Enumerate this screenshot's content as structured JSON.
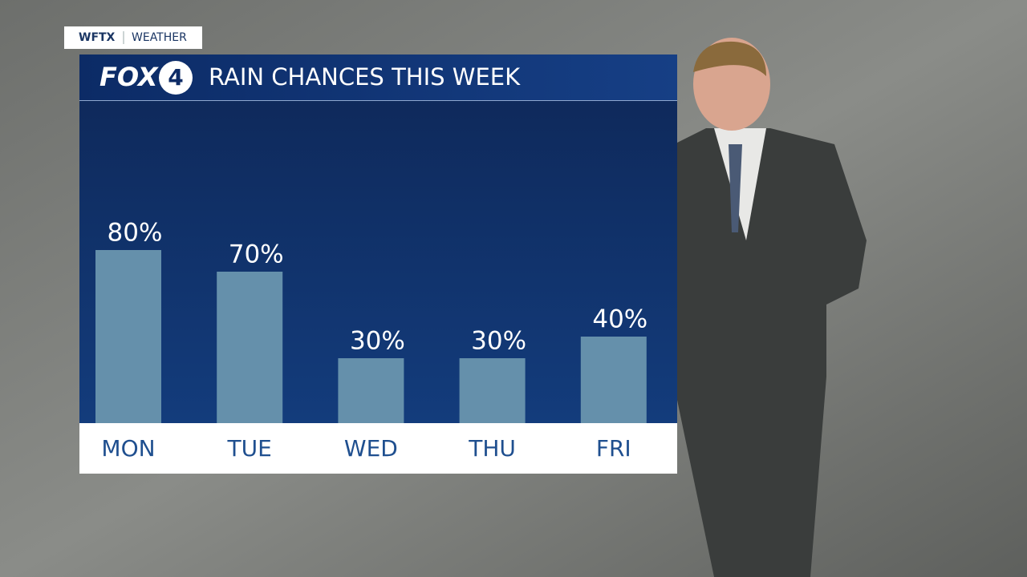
{
  "header": {
    "station": "WFTX",
    "section": "WEATHER"
  },
  "branding": {
    "logo": "FOX",
    "logo_number": "4"
  },
  "chart_data": {
    "type": "bar",
    "title": "RAIN CHANCES THIS WEEK",
    "categories": [
      "MON",
      "TUE",
      "WED",
      "THU",
      "FRI"
    ],
    "values": [
      80,
      70,
      30,
      30,
      40
    ],
    "value_labels": [
      "80%",
      "70%",
      "30%",
      "30%",
      "40%"
    ],
    "color": "#6590ab",
    "ylim": [
      0,
      100
    ]
  }
}
